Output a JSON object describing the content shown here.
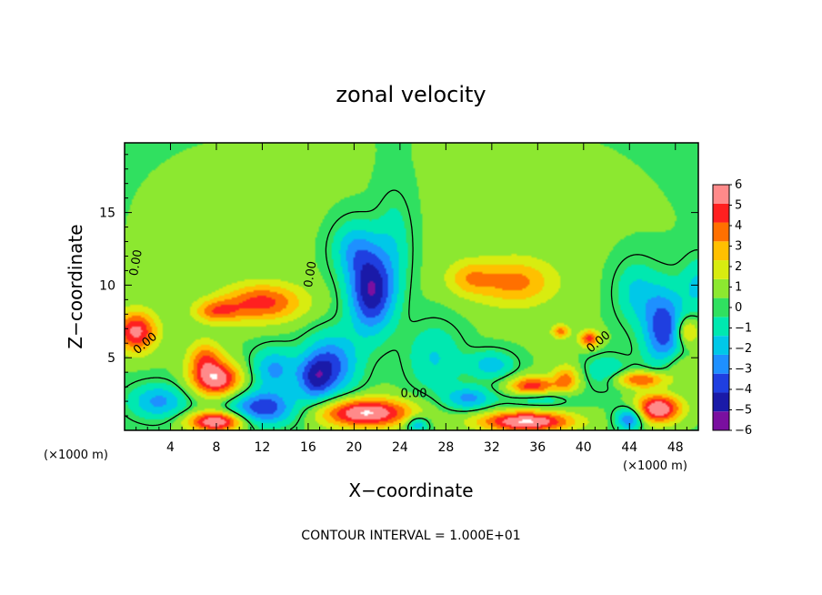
{
  "chart_data": {
    "type": "heatmap",
    "title": "zonal velocity",
    "xlabel": "X−coordinate",
    "ylabel": "Z−coordinate",
    "x_multiplier_left": "(×1000 m)",
    "x_multiplier_right": "(×1000 m)",
    "xlim": [
      0,
      50
    ],
    "ylim": [
      0,
      19.8
    ],
    "x_ticks": [
      4,
      8,
      12,
      16,
      20,
      24,
      28,
      32,
      36,
      40,
      44,
      48
    ],
    "x_tick_labels": [
      "4",
      "8",
      "12",
      "16",
      "20",
      "24",
      "28",
      "32",
      "36",
      "40",
      "44",
      "48"
    ],
    "y_ticks": [
      5,
      10,
      15
    ],
    "y_tick_labels": [
      "5",
      "10",
      "15"
    ],
    "colorbar": {
      "min": -6,
      "max": 6,
      "ticks": [
        6,
        5,
        4,
        3,
        2,
        1,
        0,
        -1,
        -2,
        -3,
        -4,
        -5,
        -6
      ],
      "tick_labels": [
        "6",
        "5",
        "4",
        "3",
        "2",
        "1",
        "0",
        "−1",
        "−2",
        "−3",
        "−4",
        "−5",
        "−6"
      ],
      "colors": [
        "#7a0fa0",
        "#1a1aa8",
        "#1f3fe0",
        "#1e90ff",
        "#00c8e8",
        "#00e8b0",
        "#30e060",
        "#8ce830",
        "#d8ec10",
        "#ffc000",
        "#ff7000",
        "#ff2020",
        "#ff8a8a"
      ]
    },
    "field_samples": [
      {
        "x": 25,
        "z": 10,
        "u": 0.6,
        "sx": 50,
        "sz": 20
      },
      {
        "x": 10,
        "z": 16,
        "u": 0.3,
        "sx": 6,
        "sz": 3
      },
      {
        "x": 36,
        "z": 16,
        "u": 0.4,
        "sx": 6,
        "sz": 3
      },
      {
        "x": 1,
        "z": 6.8,
        "u": 5.0,
        "sx": 1.8,
        "sz": 1.4
      },
      {
        "x": 12,
        "z": 8.8,
        "u": 4.0,
        "sx": 3.5,
        "sz": 1.3
      },
      {
        "x": 8,
        "z": 8.2,
        "u": 3.0,
        "sx": 2.0,
        "sz": 0.8
      },
      {
        "x": 34,
        "z": 10.2,
        "u": 3.0,
        "sx": 3.5,
        "sz": 1.6
      },
      {
        "x": 30,
        "z": 10.5,
        "u": 2.0,
        "sx": 2.0,
        "sz": 1.2
      },
      {
        "x": 49,
        "z": 6.8,
        "u": 3.0,
        "sx": 1.0,
        "sz": 1.0
      },
      {
        "x": 21.5,
        "z": 9.5,
        "u": -5.5,
        "sx": 2.0,
        "sz": 2.8
      },
      {
        "x": 20,
        "z": 12.5,
        "u": -2.5,
        "sx": 2.0,
        "sz": 2.0
      },
      {
        "x": 18,
        "z": 4.5,
        "u": -4.0,
        "sx": 2.4,
        "sz": 2.2
      },
      {
        "x": 23.5,
        "z": 13,
        "u": -1.5,
        "sx": 1.6,
        "sz": 3.5
      },
      {
        "x": 27,
        "z": 5,
        "u": -2.0,
        "sx": 2.5,
        "sz": 2.5
      },
      {
        "x": 8,
        "z": 3.5,
        "u": 5.5,
        "sx": 2.2,
        "sz": 1.2
      },
      {
        "x": 7,
        "z": 5,
        "u": 3.0,
        "sx": 1.5,
        "sz": 1.2
      },
      {
        "x": 3,
        "z": 2,
        "u": -3.0,
        "sx": 2.5,
        "sz": 1.2
      },
      {
        "x": 13,
        "z": 4.2,
        "u": -3.0,
        "sx": 2.0,
        "sz": 1.5
      },
      {
        "x": 12,
        "z": 1.5,
        "u": -4.5,
        "sx": 3.0,
        "sz": 1.2
      },
      {
        "x": 8,
        "z": 0.6,
        "u": 6.0,
        "sx": 2.5,
        "sz": 0.7
      },
      {
        "x": 21,
        "z": 1.2,
        "u": 6.0,
        "sx": 4.0,
        "sz": 1.0
      },
      {
        "x": 25.5,
        "z": 0.4,
        "u": -3.0,
        "sx": 1.0,
        "sz": 0.6
      },
      {
        "x": 35,
        "z": 0.6,
        "u": 6.0,
        "sx": 4.0,
        "sz": 0.7
      },
      {
        "x": 46.5,
        "z": 1.5,
        "u": 6.0,
        "sx": 2.0,
        "sz": 1.0
      },
      {
        "x": 35.5,
        "z": 3,
        "u": 4.5,
        "sx": 2.0,
        "sz": 0.7
      },
      {
        "x": 32,
        "z": 4.5,
        "u": -2.5,
        "sx": 2.0,
        "sz": 1.0
      },
      {
        "x": 36,
        "z": 2.2,
        "u": -2.0,
        "sx": 3.0,
        "sz": 0.6
      },
      {
        "x": 38.5,
        "z": 3.5,
        "u": 3.0,
        "sx": 1.2,
        "sz": 1.0
      },
      {
        "x": 38,
        "z": 6.8,
        "u": 3.0,
        "sx": 0.8,
        "sz": 0.5
      },
      {
        "x": 40.5,
        "z": 6.3,
        "u": 4.0,
        "sx": 0.9,
        "sz": 0.6
      },
      {
        "x": 42,
        "z": 4,
        "u": -2.0,
        "sx": 2.0,
        "sz": 1.2
      },
      {
        "x": 47,
        "z": 7,
        "u": -4.5,
        "sx": 1.8,
        "sz": 2.8
      },
      {
        "x": 44.5,
        "z": 9.5,
        "u": -2.0,
        "sx": 1.8,
        "sz": 2.2
      },
      {
        "x": 50,
        "z": 10,
        "u": -2.0,
        "sx": 1.5,
        "sz": 2.0
      },
      {
        "x": 44,
        "z": 0.8,
        "u": -4.0,
        "sx": 1.2,
        "sz": 0.8
      },
      {
        "x": 45,
        "z": 3.5,
        "u": 4.0,
        "sx": 2.5,
        "sz": 0.6
      },
      {
        "x": 30,
        "z": 2.2,
        "u": -3.0,
        "sx": 2.0,
        "sz": 0.8
      },
      {
        "x": 48,
        "z": 4.5,
        "u": 1.5,
        "sx": 1.5,
        "sz": 1.0
      },
      {
        "x": 16.5,
        "z": 3.5,
        "u": -3.0,
        "sx": 1.5,
        "sz": 1.5
      }
    ],
    "contour_labels": [
      {
        "text": "0.00",
        "x": 1.3,
        "z": 11.5,
        "rotate": -80
      },
      {
        "text": "0.00",
        "x": 16.5,
        "z": 10.7,
        "rotate": -80
      },
      {
        "text": "0.00",
        "x": 2.0,
        "z": 5.8,
        "rotate": -40
      },
      {
        "text": "0.00",
        "x": 25.2,
        "z": 2.3,
        "rotate": 0
      },
      {
        "text": "0.00",
        "x": 41.5,
        "z": 5.9,
        "rotate": -40
      }
    ],
    "contour_interval_text": "CONTOUR INTERVAL = 1.000E+01"
  }
}
